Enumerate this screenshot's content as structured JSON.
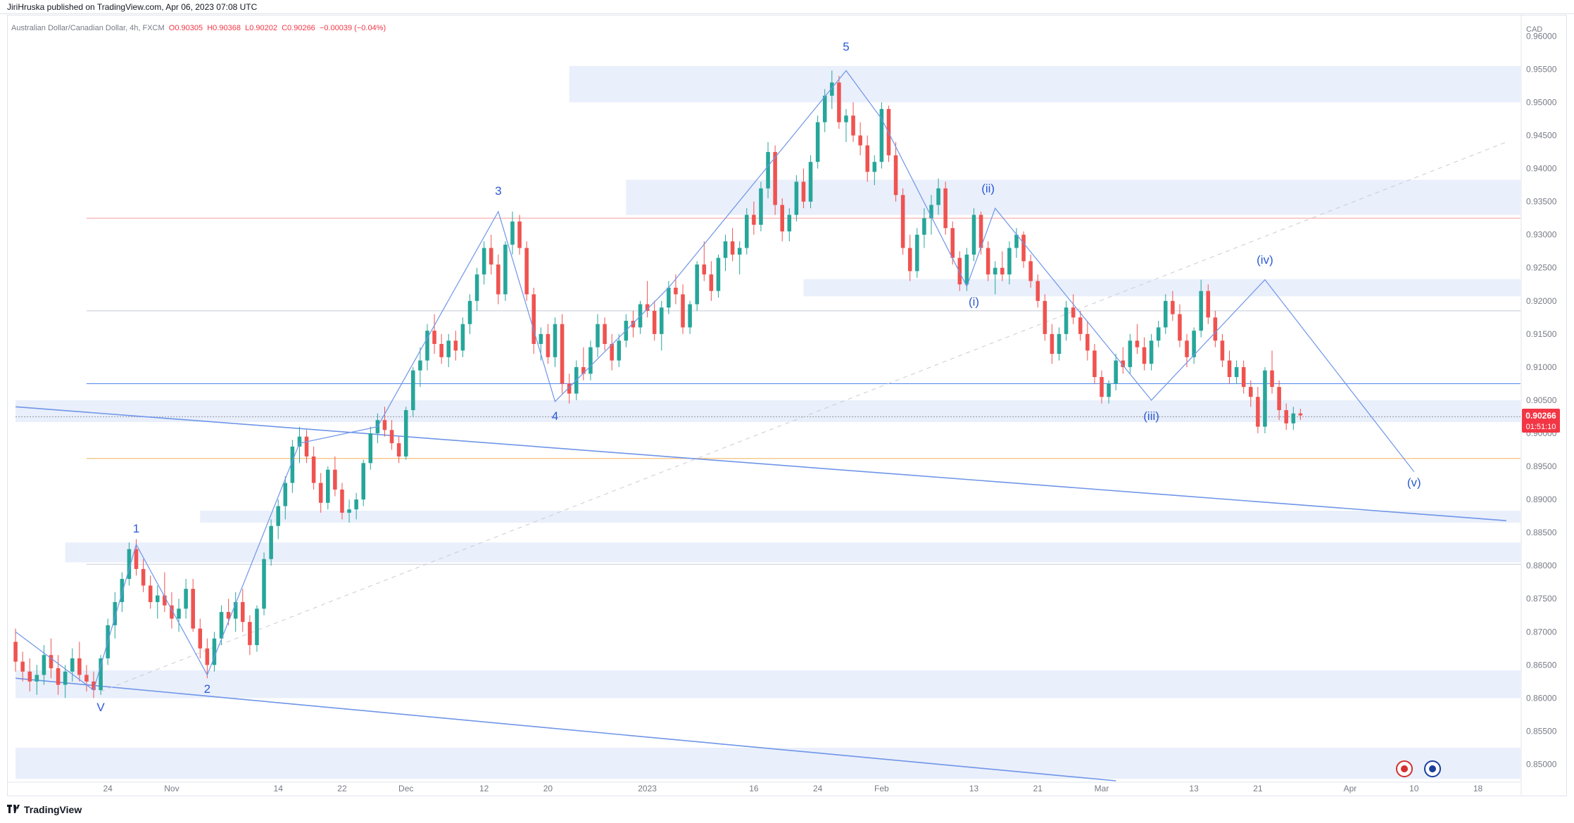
{
  "header": {
    "publisher": "JiriHruska published on TradingView.com, Apr 06, 2023 07:08 UTC"
  },
  "symbol": {
    "name": "Australian Dollar/Canadian Dollar, 4h, FXCM",
    "open": "O0.90305",
    "high": "H0.90368",
    "low": "L0.90202",
    "close": "C0.90266",
    "change": "−0.00039 (−0.04%)"
  },
  "footer": {
    "brand": "TradingView"
  },
  "chart_data": {
    "type": "candlestick",
    "currency": "CAD",
    "ylim": [
      0.8475,
      0.961
    ],
    "y_ticks": [
      "0.96000",
      "0.95500",
      "0.95000",
      "0.94500",
      "0.94000",
      "0.93500",
      "0.93000",
      "0.92500",
      "0.92000",
      "0.91500",
      "0.91000",
      "0.90500",
      "0.90000",
      "0.89500",
      "0.89000",
      "0.88500",
      "0.88000",
      "0.87500",
      "0.87000",
      "0.86500",
      "0.86000",
      "0.85500",
      "0.85000"
    ],
    "x_ticks": [
      {
        "label": "24",
        "i": 13
      },
      {
        "label": "Nov",
        "i": 22
      },
      {
        "label": "14",
        "i": 37
      },
      {
        "label": "22",
        "i": 46
      },
      {
        "label": "Dec",
        "i": 55
      },
      {
        "label": "12",
        "i": 66
      },
      {
        "label": "20",
        "i": 75
      },
      {
        "label": "2023",
        "i": 89
      },
      {
        "label": "16",
        "i": 104
      },
      {
        "label": "24",
        "i": 113
      },
      {
        "label": "Feb",
        "i": 122
      },
      {
        "label": "13",
        "i": 135
      },
      {
        "label": "21",
        "i": 144
      },
      {
        "label": "Mar",
        "i": 153
      },
      {
        "label": "13",
        "i": 166
      },
      {
        "label": "21",
        "i": 175
      },
      {
        "label": "Apr",
        "i": 188
      },
      {
        "label": "10",
        "i": 197
      },
      {
        "label": "18",
        "i": 206
      }
    ],
    "last_price": "0.90266",
    "countdown": "01:51:10",
    "wave_path": [
      {
        "i": 0,
        "v": 0.87
      },
      {
        "i": 11,
        "v": 0.8612
      },
      {
        "i": 17,
        "v": 0.8832
      },
      {
        "i": 27,
        "v": 0.8635
      },
      {
        "i": 40,
        "v": 0.8985
      },
      {
        "i": 51,
        "v": 0.901
      },
      {
        "i": 68,
        "v": 0.9335
      },
      {
        "i": 76,
        "v": 0.9048
      },
      {
        "i": 92,
        "v": 0.922
      },
      {
        "i": 117,
        "v": 0.9548
      },
      {
        "i": 122,
        "v": 0.9475
      },
      {
        "i": 134,
        "v": 0.9222
      },
      {
        "i": 138,
        "v": 0.934
      },
      {
        "i": 160,
        "v": 0.905
      },
      {
        "i": 176,
        "v": 0.9232
      },
      {
        "i": 197,
        "v": 0.8942
      }
    ],
    "wave_labels": [
      {
        "text": "V",
        "i": 12,
        "v": 0.858
      },
      {
        "text": "1",
        "i": 17,
        "v": 0.885
      },
      {
        "text": "2",
        "i": 27,
        "v": 0.8608
      },
      {
        "text": "3",
        "i": 68,
        "v": 0.936
      },
      {
        "text": "4",
        "i": 76,
        "v": 0.902
      },
      {
        "text": "5",
        "i": 117,
        "v": 0.9578
      },
      {
        "text": "(i)",
        "i": 135,
        "v": 0.9193
      },
      {
        "text": "(ii)",
        "i": 137,
        "v": 0.9364
      },
      {
        "text": "(iii)",
        "i": 160,
        "v": 0.902
      },
      {
        "text": "(iv)",
        "i": 176,
        "v": 0.9256
      },
      {
        "text": "(v)",
        "i": 197,
        "v": 0.892
      }
    ],
    "zones": [
      {
        "from_i": 78,
        "v1": 0.95,
        "v2": 0.9555
      },
      {
        "from_i": 86,
        "v1": 0.933,
        "v2": 0.9383
      },
      {
        "from_i": 111,
        "v1": 0.9207,
        "v2": 0.9233
      },
      {
        "from_i": 0,
        "v1": 0.9017,
        "v2": 0.905
      },
      {
        "from_i": 26,
        "v1": 0.8865,
        "v2": 0.8883
      },
      {
        "from_i": 7,
        "v1": 0.8805,
        "v2": 0.8835
      },
      {
        "from_i": 0,
        "v1": 0.86,
        "v2": 0.8642
      },
      {
        "from_i": 0,
        "v1": 0.8478,
        "v2": 0.8525
      }
    ],
    "hlines": [
      {
        "from_i": 10,
        "v": 0.9325,
        "color": "#f7a8a8"
      },
      {
        "from_i": 10,
        "v": 0.9185,
        "color": "#cfd3dc"
      },
      {
        "from_i": 10,
        "v": 0.9075,
        "color": "#5b8def"
      },
      {
        "from_i": 0,
        "v": 0.9025,
        "color": "#a0a4b0",
        "dash": true
      },
      {
        "from_i": 10,
        "v": 0.8962,
        "color": "#f5c07a"
      },
      {
        "from_i": 10,
        "v": 0.8802,
        "color": "#cfd3dc"
      }
    ],
    "trendlines": [
      {
        "i1": 0,
        "v1": 0.904,
        "i2": 210,
        "v2": 0.8868,
        "color": "#6f95e8",
        "width": 1.6
      },
      {
        "i1": 0,
        "v1": 0.863,
        "i2": 155,
        "v2": 0.8475,
        "color": "#6f95e8",
        "width": 1.6
      },
      {
        "i1": 12,
        "v1": 0.861,
        "i2": 210,
        "v2": 0.944,
        "color": "#c8cbd3",
        "width": 1,
        "dash": true
      }
    ],
    "candles": [
      [
        0.8685,
        0.8705,
        0.864,
        0.8655
      ],
      [
        0.8655,
        0.867,
        0.8625,
        0.864
      ],
      [
        0.864,
        0.866,
        0.861,
        0.8625
      ],
      [
        0.8625,
        0.865,
        0.8605,
        0.8635
      ],
      [
        0.8635,
        0.868,
        0.862,
        0.8665
      ],
      [
        0.8665,
        0.869,
        0.863,
        0.8645
      ],
      [
        0.8645,
        0.8665,
        0.8605,
        0.862
      ],
      [
        0.862,
        0.865,
        0.86,
        0.864
      ],
      [
        0.864,
        0.8675,
        0.8625,
        0.866
      ],
      [
        0.866,
        0.8685,
        0.8625,
        0.8635
      ],
      [
        0.8635,
        0.865,
        0.861,
        0.8625
      ],
      [
        0.8625,
        0.864,
        0.86,
        0.8612
      ],
      [
        0.8612,
        0.8665,
        0.8605,
        0.866
      ],
      [
        0.866,
        0.872,
        0.865,
        0.871
      ],
      [
        0.871,
        0.876,
        0.869,
        0.8745
      ],
      [
        0.8745,
        0.879,
        0.873,
        0.878
      ],
      [
        0.878,
        0.8835,
        0.877,
        0.8825
      ],
      [
        0.8825,
        0.884,
        0.8785,
        0.8795
      ],
      [
        0.8795,
        0.881,
        0.876,
        0.877
      ],
      [
        0.877,
        0.8785,
        0.8735,
        0.8745
      ],
      [
        0.8745,
        0.877,
        0.872,
        0.8755
      ],
      [
        0.8755,
        0.879,
        0.873,
        0.874
      ],
      [
        0.874,
        0.876,
        0.8705,
        0.872
      ],
      [
        0.872,
        0.875,
        0.87,
        0.8735
      ],
      [
        0.8735,
        0.878,
        0.872,
        0.8765
      ],
      [
        0.8765,
        0.878,
        0.87,
        0.8705
      ],
      [
        0.8705,
        0.872,
        0.866,
        0.8675
      ],
      [
        0.8675,
        0.869,
        0.863,
        0.865
      ],
      [
        0.865,
        0.87,
        0.864,
        0.869
      ],
      [
        0.869,
        0.874,
        0.868,
        0.873
      ],
      [
        0.873,
        0.875,
        0.871,
        0.872
      ],
      [
        0.872,
        0.876,
        0.87,
        0.8745
      ],
      [
        0.8745,
        0.8765,
        0.87,
        0.8715
      ],
      [
        0.8715,
        0.8725,
        0.8665,
        0.868
      ],
      [
        0.868,
        0.874,
        0.867,
        0.8735
      ],
      [
        0.8735,
        0.882,
        0.8725,
        0.881
      ],
      [
        0.881,
        0.887,
        0.88,
        0.886
      ],
      [
        0.886,
        0.89,
        0.884,
        0.889
      ],
      [
        0.889,
        0.8935,
        0.887,
        0.8925
      ],
      [
        0.8925,
        0.899,
        0.891,
        0.898
      ],
      [
        0.898,
        0.901,
        0.8955,
        0.8995
      ],
      [
        0.8995,
        0.9005,
        0.8955,
        0.8965
      ],
      [
        0.8965,
        0.898,
        0.8915,
        0.8925
      ],
      [
        0.8925,
        0.894,
        0.888,
        0.8895
      ],
      [
        0.8895,
        0.895,
        0.8885,
        0.8945
      ],
      [
        0.8945,
        0.8965,
        0.8905,
        0.8915
      ],
      [
        0.8915,
        0.8925,
        0.887,
        0.888
      ],
      [
        0.888,
        0.89,
        0.8865,
        0.8885
      ],
      [
        0.8885,
        0.891,
        0.887,
        0.89
      ],
      [
        0.89,
        0.896,
        0.889,
        0.8955
      ],
      [
        0.8955,
        0.901,
        0.8945,
        0.9
      ],
      [
        0.9,
        0.903,
        0.8985,
        0.902
      ],
      [
        0.902,
        0.904,
        0.8995,
        0.9005
      ],
      [
        0.9005,
        0.902,
        0.8975,
        0.8985
      ],
      [
        0.8985,
        0.8995,
        0.8955,
        0.8965
      ],
      [
        0.8965,
        0.904,
        0.896,
        0.9035
      ],
      [
        0.9035,
        0.91,
        0.9025,
        0.9095
      ],
      [
        0.9095,
        0.913,
        0.907,
        0.911
      ],
      [
        0.911,
        0.9165,
        0.9095,
        0.9155
      ],
      [
        0.9155,
        0.918,
        0.912,
        0.9135
      ],
      [
        0.9135,
        0.915,
        0.9105,
        0.9115
      ],
      [
        0.9115,
        0.915,
        0.91,
        0.914
      ],
      [
        0.914,
        0.9155,
        0.911,
        0.9125
      ],
      [
        0.9125,
        0.9175,
        0.9115,
        0.9165
      ],
      [
        0.9165,
        0.921,
        0.915,
        0.92
      ],
      [
        0.92,
        0.925,
        0.9185,
        0.924
      ],
      [
        0.924,
        0.929,
        0.9225,
        0.928
      ],
      [
        0.928,
        0.93,
        0.924,
        0.9255
      ],
      [
        0.9255,
        0.927,
        0.9195,
        0.921
      ],
      [
        0.921,
        0.929,
        0.92,
        0.9285
      ],
      [
        0.9285,
        0.9335,
        0.927,
        0.932
      ],
      [
        0.932,
        0.933,
        0.927,
        0.928
      ],
      [
        0.928,
        0.929,
        0.92,
        0.921
      ],
      [
        0.921,
        0.922,
        0.912,
        0.9135
      ],
      [
        0.9135,
        0.916,
        0.911,
        0.915
      ],
      [
        0.915,
        0.9165,
        0.9105,
        0.9115
      ],
      [
        0.9115,
        0.9175,
        0.91,
        0.9165
      ],
      [
        0.9165,
        0.918,
        0.906,
        0.9075
      ],
      [
        0.9075,
        0.909,
        0.9045,
        0.906
      ],
      [
        0.906,
        0.911,
        0.905,
        0.91
      ],
      [
        0.91,
        0.913,
        0.908,
        0.909
      ],
      [
        0.909,
        0.914,
        0.908,
        0.913
      ],
      [
        0.913,
        0.918,
        0.9115,
        0.9165
      ],
      [
        0.9165,
        0.9175,
        0.9125,
        0.9135
      ],
      [
        0.9135,
        0.915,
        0.9095,
        0.911
      ],
      [
        0.911,
        0.915,
        0.91,
        0.914
      ],
      [
        0.914,
        0.918,
        0.913,
        0.917
      ],
      [
        0.917,
        0.9185,
        0.9145,
        0.916
      ],
      [
        0.916,
        0.92,
        0.915,
        0.9195
      ],
      [
        0.9195,
        0.923,
        0.9175,
        0.9185
      ],
      [
        0.9185,
        0.92,
        0.914,
        0.915
      ],
      [
        0.915,
        0.92,
        0.9125,
        0.919
      ],
      [
        0.919,
        0.923,
        0.918,
        0.922
      ],
      [
        0.922,
        0.924,
        0.9195,
        0.921
      ],
      [
        0.921,
        0.9225,
        0.915,
        0.916
      ],
      [
        0.916,
        0.92,
        0.915,
        0.9195
      ],
      [
        0.9195,
        0.926,
        0.9185,
        0.9255
      ],
      [
        0.9255,
        0.929,
        0.923,
        0.924
      ],
      [
        0.924,
        0.926,
        0.92,
        0.9215
      ],
      [
        0.9215,
        0.927,
        0.9205,
        0.9265
      ],
      [
        0.9265,
        0.93,
        0.9245,
        0.929
      ],
      [
        0.929,
        0.931,
        0.926,
        0.927
      ],
      [
        0.927,
        0.929,
        0.924,
        0.928
      ],
      [
        0.928,
        0.934,
        0.927,
        0.933
      ],
      [
        0.933,
        0.935,
        0.93,
        0.9315
      ],
      [
        0.9315,
        0.938,
        0.9305,
        0.937
      ],
      [
        0.937,
        0.944,
        0.9355,
        0.9425
      ],
      [
        0.9425,
        0.9435,
        0.933,
        0.9345
      ],
      [
        0.9345,
        0.9355,
        0.929,
        0.9305
      ],
      [
        0.9305,
        0.934,
        0.929,
        0.933
      ],
      [
        0.933,
        0.939,
        0.932,
        0.938
      ],
      [
        0.938,
        0.94,
        0.934,
        0.935
      ],
      [
        0.935,
        0.942,
        0.934,
        0.941
      ],
      [
        0.941,
        0.948,
        0.94,
        0.947
      ],
      [
        0.947,
        0.952,
        0.9455,
        0.951
      ],
      [
        0.951,
        0.9548,
        0.949,
        0.953
      ],
      [
        0.953,
        0.954,
        0.946,
        0.947
      ],
      [
        0.947,
        0.949,
        0.944,
        0.948
      ],
      [
        0.948,
        0.95,
        0.944,
        0.945
      ],
      [
        0.945,
        0.947,
        0.942,
        0.9435
      ],
      [
        0.9435,
        0.945,
        0.938,
        0.9395
      ],
      [
        0.9395,
        0.942,
        0.9375,
        0.941
      ],
      [
        0.941,
        0.95,
        0.94,
        0.949
      ],
      [
        0.949,
        0.9495,
        0.941,
        0.942
      ],
      [
        0.942,
        0.944,
        0.935,
        0.936
      ],
      [
        0.936,
        0.937,
        0.927,
        0.928
      ],
      [
        0.928,
        0.93,
        0.923,
        0.9245
      ],
      [
        0.9245,
        0.931,
        0.9235,
        0.93
      ],
      [
        0.93,
        0.934,
        0.928,
        0.9325
      ],
      [
        0.9325,
        0.936,
        0.93,
        0.9345
      ],
      [
        0.9345,
        0.9385,
        0.933,
        0.937
      ],
      [
        0.937,
        0.938,
        0.93,
        0.931
      ],
      [
        0.931,
        0.932,
        0.9255,
        0.9265
      ],
      [
        0.9265,
        0.9275,
        0.9215,
        0.9225
      ],
      [
        0.9225,
        0.928,
        0.9215,
        0.927
      ],
      [
        0.927,
        0.934,
        0.926,
        0.933
      ],
      [
        0.933,
        0.9335,
        0.927,
        0.928
      ],
      [
        0.928,
        0.929,
        0.923,
        0.924
      ],
      [
        0.924,
        0.926,
        0.921,
        0.925
      ],
      [
        0.925,
        0.9275,
        0.923,
        0.924
      ],
      [
        0.924,
        0.929,
        0.9225,
        0.928
      ],
      [
        0.928,
        0.931,
        0.9265,
        0.93
      ],
      [
        0.93,
        0.9305,
        0.925,
        0.926
      ],
      [
        0.926,
        0.927,
        0.922,
        0.923
      ],
      [
        0.923,
        0.924,
        0.919,
        0.92
      ],
      [
        0.92,
        0.921,
        0.914,
        0.915
      ],
      [
        0.915,
        0.9165,
        0.9105,
        0.912
      ],
      [
        0.912,
        0.916,
        0.911,
        0.915
      ],
      [
        0.915,
        0.92,
        0.914,
        0.919
      ],
      [
        0.919,
        0.921,
        0.9165,
        0.9175
      ],
      [
        0.9175,
        0.9185,
        0.914,
        0.915
      ],
      [
        0.915,
        0.917,
        0.911,
        0.9125
      ],
      [
        0.9125,
        0.9135,
        0.9075,
        0.9085
      ],
      [
        0.9085,
        0.9095,
        0.9045,
        0.9055
      ],
      [
        0.9055,
        0.908,
        0.9045,
        0.9075
      ],
      [
        0.9075,
        0.912,
        0.9065,
        0.911
      ],
      [
        0.911,
        0.913,
        0.909,
        0.91
      ],
      [
        0.91,
        0.915,
        0.909,
        0.914
      ],
      [
        0.914,
        0.9165,
        0.912,
        0.913
      ],
      [
        0.913,
        0.9145,
        0.9095,
        0.9105
      ],
      [
        0.9105,
        0.915,
        0.9095,
        0.914
      ],
      [
        0.914,
        0.917,
        0.913,
        0.916
      ],
      [
        0.916,
        0.921,
        0.915,
        0.92
      ],
      [
        0.92,
        0.9215,
        0.917,
        0.918
      ],
      [
        0.918,
        0.9195,
        0.913,
        0.914
      ],
      [
        0.914,
        0.915,
        0.91,
        0.9115
      ],
      [
        0.9115,
        0.916,
        0.9105,
        0.9155
      ],
      [
        0.9155,
        0.9232,
        0.9145,
        0.9215
      ],
      [
        0.9215,
        0.9225,
        0.9165,
        0.9175
      ],
      [
        0.9175,
        0.9185,
        0.913,
        0.914
      ],
      [
        0.914,
        0.915,
        0.91,
        0.911
      ],
      [
        0.911,
        0.9125,
        0.9075,
        0.9085
      ],
      [
        0.9085,
        0.911,
        0.9075,
        0.91
      ],
      [
        0.91,
        0.911,
        0.906,
        0.907
      ],
      [
        0.907,
        0.908,
        0.904,
        0.9055
      ],
      [
        0.9055,
        0.907,
        0.9,
        0.901
      ],
      [
        0.901,
        0.91,
        0.9,
        0.9095
      ],
      [
        0.9095,
        0.9125,
        0.906,
        0.907
      ],
      [
        0.907,
        0.908,
        0.902,
        0.9035
      ],
      [
        0.9035,
        0.9045,
        0.9005,
        0.9015
      ],
      [
        0.9015,
        0.904,
        0.9005,
        0.903
      ],
      [
        0.903,
        0.9037,
        0.902,
        0.9027
      ]
    ]
  }
}
